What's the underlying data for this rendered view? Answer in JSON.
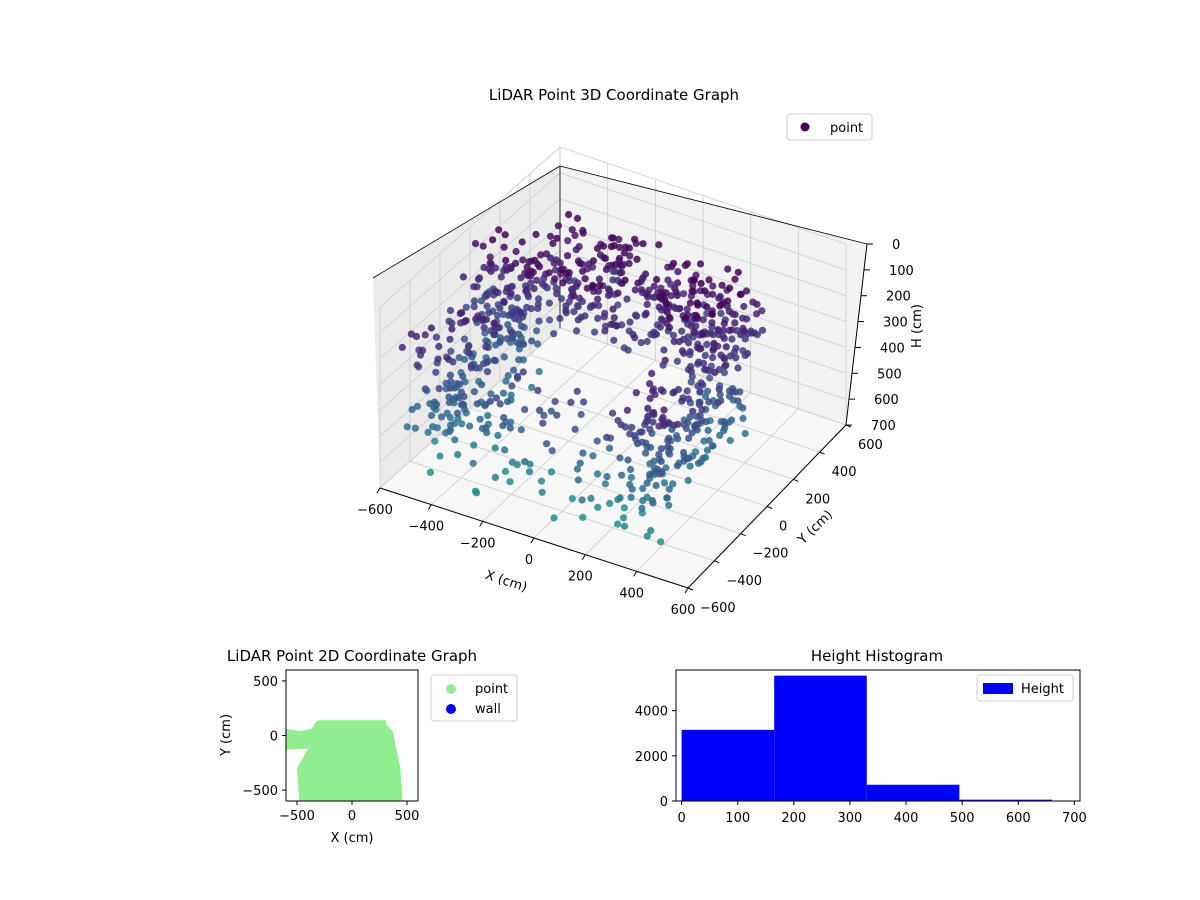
{
  "chart_data": [
    {
      "type": "scatter",
      "dimensions": 3,
      "title": "LiDAR Point 3D Coordinate Graph",
      "xlabel": "X (cm)",
      "ylabel": "Y (cm)",
      "zlabel": "H (cm)",
      "xlim": [
        -600,
        600
      ],
      "ylim": [
        -600,
        600
      ],
      "zlim": [
        700,
        0
      ],
      "z_axis_inverted": true,
      "xticks": [
        "−600",
        "−400",
        "−200",
        "0",
        "200",
        "400",
        "600"
      ],
      "yticks": [
        "−600",
        "−400",
        "−200",
        "0",
        "200",
        "400",
        "600"
      ],
      "zticks": [
        "0",
        "100",
        "200",
        "300",
        "400",
        "500",
        "600",
        "700"
      ],
      "colormap": "viridis (colored by height)",
      "legend": {
        "entries": [
          {
            "label": "point",
            "color": "#440154"
          }
        ],
        "placement": "upper-right"
      },
      "grid": true,
      "series": [
        {
          "name": "point",
          "description": "Dense ring-shaped point cloud: back wall arc y≈−100..300, side walls x≈−450..450, front scatter toward y≈−550",
          "regions": [
            {
              "part": "back arc",
              "x_range": [
                -400,
                450
              ],
              "y_range": [
                -100,
                300
              ],
              "h_range": [
                0,
                250
              ]
            },
            {
              "part": "left wall",
              "x_range": [
                -550,
                -300
              ],
              "y_range": [
                -550,
                100
              ],
              "h_range": [
                100,
                500
              ]
            },
            {
              "part": "right wall",
              "x_range": [
                300,
                500
              ],
              "y_range": [
                -550,
                100
              ],
              "h_range": [
                100,
                500
              ]
            },
            {
              "part": "front scatter",
              "x_range": [
                -500,
                450
              ],
              "y_range": [
                -600,
                -350
              ],
              "h_range": [
                200,
                650
              ]
            },
            {
              "part": "outlier cluster",
              "x_range": [
                -600,
                -400
              ],
              "y_range": [
                -50,
                50
              ],
              "h_range": [
                0,
                450
              ]
            }
          ]
        }
      ]
    },
    {
      "type": "scatter",
      "title": "LiDAR Point 2D Coordinate Graph",
      "xlabel": "X (cm)",
      "ylabel": "Y (cm)",
      "xlim": [
        -600,
        600
      ],
      "ylim": [
        -600,
        600
      ],
      "xticks": [
        "−500",
        "0",
        "500"
      ],
      "yticks": [
        "500",
        "0",
        "−500"
      ],
      "legend": {
        "entries": [
          {
            "label": "point",
            "color": "#90ee90"
          },
          {
            "label": "wall",
            "color": "#0000ff"
          }
        ],
        "placement": "outside-right"
      },
      "series": [
        {
          "name": "point",
          "color": "#90ee90",
          "outline": [
            [
              -600,
              60
            ],
            [
              -470,
              40
            ],
            [
              -370,
              60
            ],
            [
              -330,
              120
            ],
            [
              -310,
              140
            ],
            [
              310,
              140
            ],
            [
              310,
              100
            ],
            [
              370,
              40
            ],
            [
              440,
              -300
            ],
            [
              460,
              -600
            ],
            [
              -480,
              -600
            ],
            [
              -500,
              -300
            ],
            [
              -400,
              -120
            ],
            [
              -600,
              -130
            ]
          ]
        },
        {
          "name": "wall",
          "color": "#0000ff",
          "points": []
        }
      ]
    },
    {
      "type": "bar",
      "subtype": "histogram",
      "title": "Height Histogram",
      "xlim": [
        -10,
        710
      ],
      "ylim": [
        0,
        5800
      ],
      "xticks": [
        "0",
        "100",
        "200",
        "300",
        "400",
        "500",
        "600",
        "700"
      ],
      "yticks": [
        "0",
        "2000",
        "4000"
      ],
      "legend": {
        "entries": [
          {
            "label": "Height",
            "color": "#0000ff"
          }
        ],
        "placement": "upper-right"
      },
      "series": [
        {
          "name": "Height",
          "color": "#0000ff",
          "bin_edges": [
            0,
            165,
            330,
            495,
            660
          ],
          "values": [
            3150,
            5550,
            720,
            60
          ]
        }
      ]
    }
  ]
}
